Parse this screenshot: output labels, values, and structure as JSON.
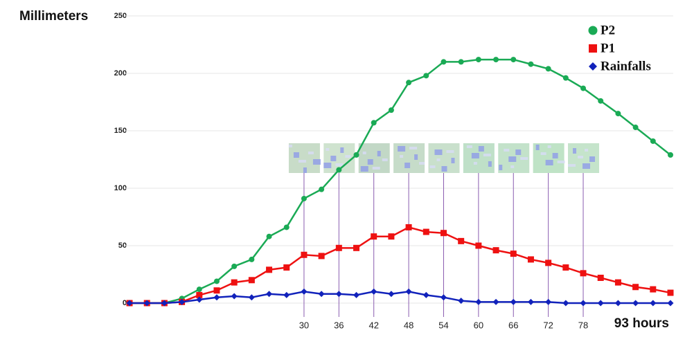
{
  "chart_data": {
    "type": "line",
    "y_axis_label": "Millimeters",
    "x_axis_label": "93 hours",
    "x": [
      0,
      3,
      6,
      9,
      12,
      15,
      18,
      21,
      24,
      27,
      30,
      33,
      36,
      39,
      42,
      45,
      48,
      51,
      54,
      57,
      60,
      63,
      66,
      69,
      72,
      75,
      78,
      81,
      84,
      87,
      90,
      93
    ],
    "series": [
      {
        "name": "P2",
        "color": "#1aaa55",
        "marker": "circle",
        "values": [
          0,
          0,
          0,
          4,
          12,
          19,
          32,
          38,
          58,
          66,
          91,
          99,
          116,
          129,
          157,
          168,
          192,
          198,
          210,
          210,
          212,
          212,
          212,
          208,
          204,
          196,
          187,
          176,
          165,
          153,
          141,
          129
        ]
      },
      {
        "name": "P1",
        "color": "#ee1111",
        "marker": "square",
        "values": [
          0,
          0,
          0,
          1,
          7,
          11,
          18,
          20,
          29,
          31,
          42,
          41,
          48,
          48,
          58,
          58,
          66,
          62,
          61,
          54,
          50,
          46,
          43,
          38,
          35,
          31,
          26,
          22,
          18,
          14,
          12,
          9
        ]
      },
      {
        "name": "Rainfalls",
        "color": "#1122bb",
        "marker": "diamond",
        "values": [
          0,
          0,
          0,
          1,
          3,
          5,
          6,
          5,
          8,
          7,
          10,
          8,
          8,
          7,
          10,
          8,
          10,
          7,
          5,
          2,
          1,
          1,
          1,
          1,
          1,
          0,
          0,
          0,
          0,
          0,
          0,
          0
        ]
      }
    ],
    "xlim": [
      0,
      93
    ],
    "xticks": [
      30,
      36,
      42,
      48,
      54,
      60,
      66,
      72,
      78
    ],
    "ylim": [
      0,
      250
    ],
    "yticks": [
      0,
      50,
      100,
      150,
      200,
      250
    ],
    "grid": true,
    "legend": "top-right"
  }
}
